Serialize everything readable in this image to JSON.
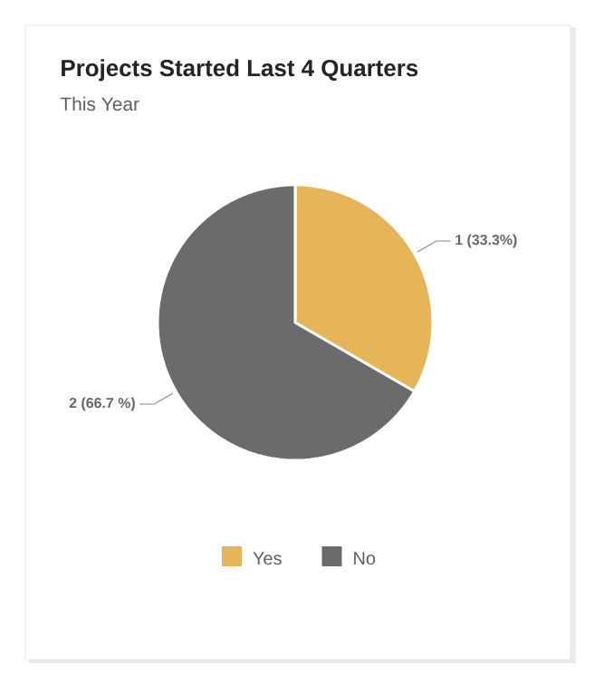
{
  "chart_data": {
    "type": "pie",
    "title": "Projects Started Last 4 Quarters",
    "subtitle": "This Year",
    "categories": [
      "Yes",
      "No"
    ],
    "values": [
      1,
      2
    ],
    "colors": [
      "#e6b55a",
      "#6b6b6b"
    ],
    "value_labels": [
      "1 (33.3%)",
      "2 (66.7 %)"
    ],
    "legend": "bottom"
  }
}
